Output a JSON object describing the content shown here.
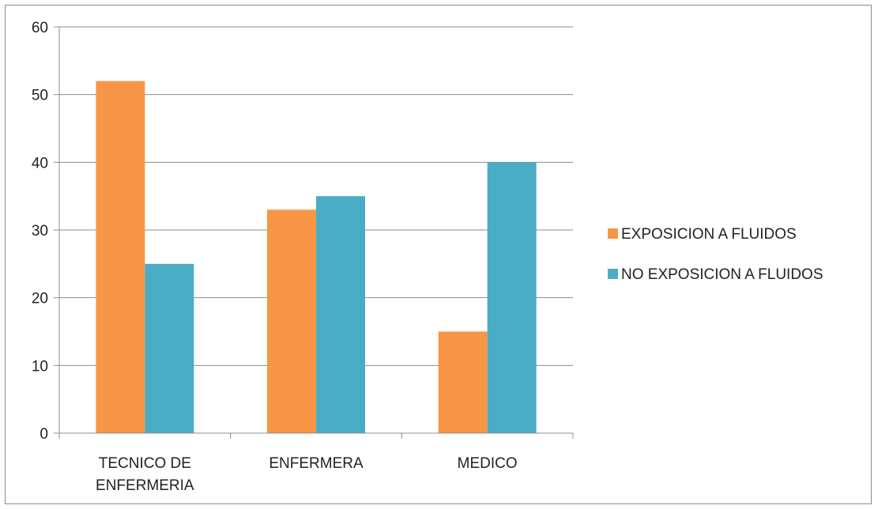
{
  "chart_data": {
    "type": "bar",
    "categories": [
      [
        "TECNICO DE",
        "ENFERMERIA"
      ],
      [
        "ENFERMERA"
      ],
      [
        "MEDICO"
      ]
    ],
    "series": [
      {
        "name": "EXPOSICION A FLUIDOS",
        "values": [
          52,
          33,
          15
        ],
        "color": "#F79646"
      },
      {
        "name": "NO EXPOSICION A FLUIDOS",
        "values": [
          25,
          35,
          40
        ],
        "color": "#4BACC6"
      }
    ],
    "ylim": [
      0,
      60
    ],
    "yticks": [
      0,
      10,
      20,
      30,
      40,
      50,
      60
    ],
    "grid": true,
    "legend_position": "right"
  }
}
